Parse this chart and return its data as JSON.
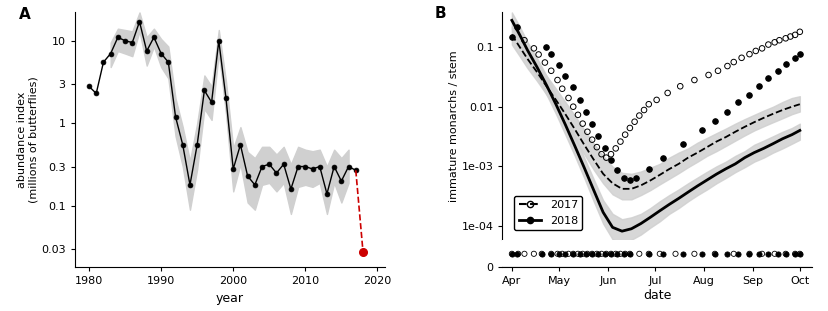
{
  "panel_a": {
    "title": "A",
    "xlabel": "year",
    "ylabel": "abundance index\n(millions of butterflies)",
    "years": [
      1980,
      1981,
      1982,
      1983,
      1984,
      1985,
      1986,
      1987,
      1988,
      1989,
      1990,
      1991,
      1992,
      1993,
      1994,
      1995,
      1996,
      1997,
      1998,
      1999,
      2000,
      2001,
      2002,
      2003,
      2004,
      2005,
      2006,
      2007,
      2008,
      2009,
      2010,
      2011,
      2012,
      2013,
      2014,
      2015,
      2016,
      2017
    ],
    "values": [
      2.8,
      2.3,
      5.5,
      7.0,
      11.0,
      10.0,
      9.5,
      17.0,
      7.5,
      11.0,
      7.0,
      5.5,
      1.2,
      0.55,
      0.18,
      0.55,
      2.5,
      1.8,
      10.0,
      2.0,
      0.28,
      0.55,
      0.23,
      0.18,
      0.3,
      0.32,
      0.25,
      0.32,
      0.16,
      0.3,
      0.3,
      0.28,
      0.3,
      0.14,
      0.3,
      0.2,
      0.3,
      0.27
    ],
    "ci_years": [
      1983,
      1984,
      1985,
      1986,
      1987,
      1988,
      1989,
      1990,
      1991,
      1992,
      1993,
      1994,
      1995,
      1996,
      1997,
      1998,
      1999,
      2000,
      2001,
      2002,
      2003,
      2004,
      2005,
      2006,
      2007,
      2008,
      2009,
      2010,
      2011,
      2012,
      2013,
      2014,
      2015,
      2016
    ],
    "ci_upper": [
      9.5,
      14.0,
      13.5,
      13.0,
      22.0,
      11.0,
      14.0,
      10.5,
      8.5,
      2.0,
      0.9,
      0.35,
      1.0,
      3.8,
      2.8,
      13.5,
      3.2,
      0.5,
      0.9,
      0.45,
      0.38,
      0.52,
      0.52,
      0.42,
      0.52,
      0.32,
      0.52,
      0.48,
      0.46,
      0.48,
      0.3,
      0.48,
      0.38,
      0.48
    ],
    "ci_lower": [
      4.8,
      7.5,
      7.0,
      6.5,
      13.0,
      5.0,
      8.5,
      4.8,
      3.5,
      0.7,
      0.3,
      0.09,
      0.28,
      1.5,
      1.1,
      7.2,
      1.3,
      0.15,
      0.32,
      0.11,
      0.09,
      0.18,
      0.19,
      0.15,
      0.19,
      0.08,
      0.17,
      0.18,
      0.17,
      0.19,
      0.08,
      0.19,
      0.11,
      0.19
    ],
    "red_year": 2018,
    "red_value": 0.028,
    "last_black_year": 2017,
    "last_black_value": 0.27,
    "xlim": [
      1978,
      2021
    ],
    "yticks": [
      0.03,
      0.1,
      0.3,
      1.0,
      3.0,
      10.0
    ],
    "ytick_labels": [
      "0.03",
      "0.1",
      "0.3",
      "1",
      "3",
      "10"
    ],
    "xticks": [
      1980,
      1990,
      2000,
      2010,
      2020
    ]
  },
  "panel_b": {
    "title": "B",
    "xlabel": "date",
    "ylabel": "immature monarchs / stem",
    "xtick_labels": [
      "Apr",
      "May",
      "Jun",
      "Jul",
      "Aug",
      "Sep",
      "Oct"
    ],
    "xtick_positions": [
      91,
      121,
      152,
      182,
      213,
      244,
      274
    ],
    "ytick_labels": [
      "1e-04",
      "1e-03",
      "0.01",
      "0.1"
    ],
    "ytick_vals": [
      0.0001,
      0.001,
      0.01,
      0.1
    ],
    "curve_2017_x": [
      91,
      96,
      101,
      107,
      113,
      119,
      125,
      131,
      137,
      143,
      149,
      155,
      161,
      167,
      173,
      179,
      185,
      191,
      197,
      203,
      209,
      215,
      221,
      227,
      233,
      239,
      245,
      251,
      257,
      263,
      269,
      274
    ],
    "curve_2017_y": [
      0.16,
      0.1,
      0.063,
      0.038,
      0.022,
      0.013,
      0.0075,
      0.0042,
      0.0023,
      0.0013,
      0.00075,
      0.00052,
      0.00042,
      0.00042,
      0.00048,
      0.00058,
      0.00072,
      0.0009,
      0.0011,
      0.0014,
      0.0017,
      0.0021,
      0.0026,
      0.0031,
      0.0038,
      0.0046,
      0.0055,
      0.0065,
      0.0076,
      0.0088,
      0.01,
      0.011
    ],
    "curve_2018_x": [
      91,
      96,
      101,
      107,
      113,
      119,
      125,
      131,
      137,
      143,
      149,
      155,
      161,
      167,
      173,
      179,
      185,
      191,
      197,
      203,
      209,
      215,
      221,
      227,
      233,
      239,
      245,
      251,
      257,
      263,
      269,
      274
    ],
    "curve_2018_y": [
      0.28,
      0.16,
      0.088,
      0.046,
      0.023,
      0.011,
      0.005,
      0.0022,
      0.00095,
      0.0004,
      0.00017,
      9.5e-05,
      8.2e-05,
      9e-05,
      0.00011,
      0.00014,
      0.00018,
      0.00023,
      0.00029,
      0.00037,
      0.00047,
      0.00059,
      0.00074,
      0.00091,
      0.0011,
      0.0014,
      0.0017,
      0.002,
      0.0024,
      0.0029,
      0.0034,
      0.004
    ],
    "ci_2017_upper": [
      0.22,
      0.14,
      0.088,
      0.054,
      0.033,
      0.02,
      0.012,
      0.0071,
      0.0041,
      0.0024,
      0.0015,
      0.00099,
      0.00078,
      0.00075,
      0.00082,
      0.00095,
      0.0011,
      0.0014,
      0.0017,
      0.002,
      0.0025,
      0.003,
      0.0036,
      0.0043,
      0.0052,
      0.0062,
      0.0073,
      0.0086,
      0.01,
      0.012,
      0.014,
      0.015
    ],
    "ci_2017_lower": [
      0.11,
      0.07,
      0.044,
      0.027,
      0.016,
      0.0094,
      0.0053,
      0.0029,
      0.0016,
      0.00088,
      0.00052,
      0.00034,
      0.00028,
      0.00028,
      0.00033,
      0.0004,
      0.0005,
      0.00062,
      0.00077,
      0.00097,
      0.0012,
      0.0015,
      0.0018,
      0.0022,
      0.0027,
      0.0033,
      0.004,
      0.0047,
      0.0055,
      0.0064,
      0.0075,
      0.0083
    ],
    "ci_2018_upper": [
      0.38,
      0.22,
      0.12,
      0.065,
      0.033,
      0.016,
      0.0074,
      0.0033,
      0.0014,
      0.00061,
      0.00027,
      0.00016,
      0.00013,
      0.00014,
      0.00016,
      0.0002,
      0.00026,
      0.00033,
      0.00041,
      0.00052,
      0.00065,
      0.00081,
      0.001,
      0.0012,
      0.0015,
      0.0018,
      0.0023,
      0.0027,
      0.0032,
      0.0038,
      0.0044,
      0.0052
    ],
    "ci_2018_lower": [
      0.2,
      0.11,
      0.06,
      0.032,
      0.016,
      0.0076,
      0.0034,
      0.0015,
      0.00064,
      0.00026,
      0.00011,
      6e-05,
      5.2e-05,
      5.9e-05,
      7.2e-05,
      9.4e-05,
      0.00012,
      0.00016,
      0.0002,
      0.00026,
      0.00033,
      0.00041,
      0.00052,
      0.00064,
      0.0008,
      0.00097,
      0.0012,
      0.0014,
      0.0017,
      0.002,
      0.0024,
      0.0028
    ],
    "scatter_2017_x": [
      99,
      105,
      108,
      112,
      116,
      120,
      123,
      127,
      130,
      133,
      136,
      139,
      142,
      145,
      148,
      151,
      154,
      157,
      160,
      163,
      166,
      169,
      172,
      175,
      178,
      183,
      190,
      198,
      207,
      216,
      222,
      228,
      232,
      237,
      242,
      246,
      250,
      254,
      258,
      261,
      265,
      268,
      271,
      274
    ],
    "scatter_2017_y": [
      0.13,
      0.095,
      0.075,
      0.055,
      0.04,
      0.028,
      0.02,
      0.014,
      0.01,
      0.0073,
      0.0052,
      0.0038,
      0.0028,
      0.0021,
      0.0016,
      0.0014,
      0.0016,
      0.002,
      0.0026,
      0.0034,
      0.0044,
      0.0056,
      0.0071,
      0.0088,
      0.011,
      0.013,
      0.017,
      0.022,
      0.028,
      0.034,
      0.04,
      0.048,
      0.056,
      0.066,
      0.076,
      0.086,
      0.095,
      0.11,
      0.12,
      0.13,
      0.14,
      0.15,
      0.16,
      0.18
    ],
    "scatter_2018_x": [
      91,
      94,
      113,
      116,
      121,
      125,
      130,
      134,
      138,
      142,
      146,
      150,
      154,
      158,
      162,
      166,
      170,
      178,
      187,
      200,
      212,
      220,
      228,
      235,
      242,
      248,
      254,
      260,
      265,
      271,
      274
    ],
    "scatter_2018_y": [
      0.15,
      0.22,
      0.1,
      0.075,
      0.05,
      0.033,
      0.021,
      0.013,
      0.0083,
      0.0052,
      0.0032,
      0.002,
      0.0013,
      0.00088,
      0.00065,
      0.00058,
      0.00063,
      0.0009,
      0.0014,
      0.0024,
      0.004,
      0.0058,
      0.0082,
      0.012,
      0.016,
      0.022,
      0.03,
      0.04,
      0.052,
      0.065,
      0.075
    ],
    "rug_2017_x": [
      91,
      95,
      99,
      105,
      110,
      116,
      120,
      123,
      127,
      130,
      133,
      136,
      139,
      142,
      145,
      148,
      151,
      154,
      157,
      160,
      163,
      166,
      172,
      178,
      185,
      195,
      207,
      220,
      232,
      242,
      250,
      258,
      265,
      271,
      274
    ],
    "rug_2018_x": [
      91,
      94,
      110,
      116,
      121,
      125,
      130,
      134,
      138,
      142,
      146,
      150,
      154,
      158,
      162,
      166,
      178,
      187,
      200,
      212,
      220,
      228,
      235,
      242,
      248,
      254,
      260,
      265,
      271,
      274
    ]
  },
  "colors": {
    "black": "#000000",
    "red": "#cc0000",
    "gray_ci": "#d0d0d0"
  }
}
